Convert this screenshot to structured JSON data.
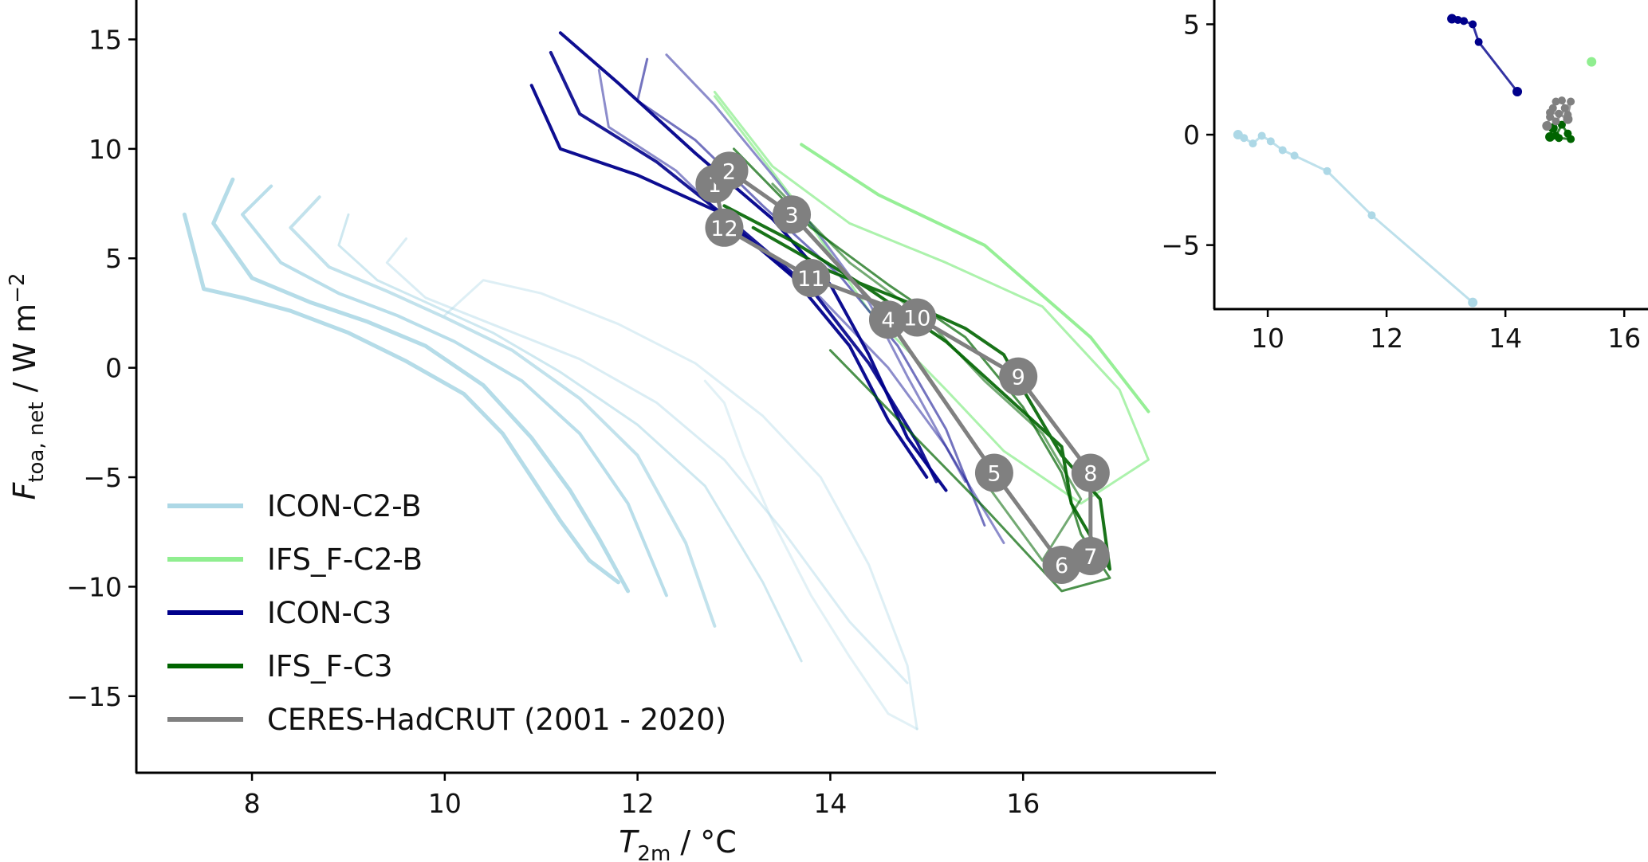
{
  "chart_data": [
    {
      "type": "line",
      "panel": "main",
      "xlabel": "T_2m / °C",
      "xlabel_parts": {
        "symbol": "T",
        "subscript": "2m",
        "unit": " / °C"
      },
      "ylabel": "F_toa,net / W m^-2",
      "ylabel_parts": {
        "symbol": "F",
        "subscript": "toa, net",
        "unit": " / W m",
        "superscript": "−2"
      },
      "xlim": [
        6.8,
        18.0
      ],
      "ylim": [
        -18.5,
        16.8
      ],
      "xticks": [
        8,
        10,
        12,
        14,
        16
      ],
      "yticks": [
        15,
        10,
        5,
        0,
        -5,
        -10,
        -15
      ],
      "xtick_labels": [
        "8",
        "10",
        "12",
        "14",
        "16"
      ],
      "ytick_labels": [
        "15",
        "10",
        "5",
        "0",
        "−5",
        "−10",
        "−15"
      ],
      "grid": false,
      "legend_position": "lower-left",
      "legend": [
        {
          "name": "ICON-C2-B",
          "color": "#add8e6"
        },
        {
          "name": "IFS_F-C2-B",
          "color": "#90ee90"
        },
        {
          "name": "ICON-C3",
          "color": "#00008b"
        },
        {
          "name": "IFS_F-C3",
          "color": "#006400"
        },
        {
          "name": "CERES-HadCRUT (2001 - 2020)",
          "color": "#808080"
        }
      ],
      "series": [
        {
          "name": "ICON-C2-B",
          "color": "#add8e6",
          "opacity": 0.9,
          "width": 5,
          "x": [
            7.3,
            7.5,
            7.9,
            8.4,
            9.0,
            9.6,
            10.2,
            10.6,
            10.9,
            11.2,
            11.5,
            11.8
          ],
          "y": [
            7.0,
            3.6,
            3.2,
            2.6,
            1.6,
            0.3,
            -1.2,
            -3.0,
            -5.0,
            -7.0,
            -8.8,
            -9.8
          ]
        },
        {
          "name": "ICON-C2-B",
          "color": "#add8e6",
          "opacity": 0.9,
          "width": 5,
          "x": [
            7.8,
            7.6,
            8.0,
            8.6,
            9.2,
            9.8,
            10.4,
            10.9,
            11.3,
            11.6,
            11.9
          ],
          "y": [
            8.6,
            6.6,
            4.1,
            3.0,
            2.1,
            1.0,
            -0.8,
            -3.2,
            -5.6,
            -7.8,
            -10.2
          ]
        },
        {
          "name": "ICON-C2-B",
          "color": "#add8e6",
          "opacity": 0.85,
          "width": 4,
          "x": [
            8.2,
            7.9,
            8.3,
            8.9,
            9.5,
            10.1,
            10.8,
            11.4,
            11.9,
            12.3
          ],
          "y": [
            8.3,
            7.0,
            4.8,
            3.4,
            2.4,
            1.2,
            -0.6,
            -3.0,
            -6.2,
            -10.4
          ]
        },
        {
          "name": "ICON-C2-B",
          "color": "#add8e6",
          "opacity": 0.75,
          "width": 4,
          "x": [
            8.7,
            8.4,
            8.8,
            9.4,
            10.0,
            10.7,
            11.4,
            12.0,
            12.5,
            12.8
          ],
          "y": [
            7.8,
            6.4,
            4.6,
            3.5,
            2.3,
            0.8,
            -1.4,
            -4.0,
            -8.0,
            -11.8
          ]
        },
        {
          "name": "ICON-C2-B",
          "color": "#add8e6",
          "opacity": 0.6,
          "width": 3,
          "x": [
            9.0,
            8.9,
            9.3,
            9.9,
            10.5,
            11.2,
            12.0,
            12.7,
            13.3,
            13.7
          ],
          "y": [
            7.0,
            5.6,
            4.0,
            2.8,
            1.6,
            -0.2,
            -2.6,
            -5.4,
            -9.8,
            -13.4
          ]
        },
        {
          "name": "ICON-C2-B",
          "color": "#add8e6",
          "opacity": 0.45,
          "width": 3,
          "x": [
            9.6,
            9.4,
            9.8,
            10.6,
            11.4,
            12.2,
            12.9,
            13.5,
            14.2,
            14.8
          ],
          "y": [
            5.9,
            4.8,
            3.2,
            1.8,
            0.4,
            -1.6,
            -4.2,
            -7.4,
            -11.6,
            -14.4
          ]
        },
        {
          "name": "ICON-C2-B",
          "color": "#add8e6",
          "opacity": 0.4,
          "width": 3,
          "x": [
            10.0,
            10.4,
            11.0,
            11.8,
            12.6,
            13.3,
            13.9,
            14.4,
            14.8,
            14.9
          ],
          "y": [
            2.4,
            4.0,
            3.4,
            2.0,
            0.2,
            -2.2,
            -5.0,
            -9.0,
            -13.6,
            -16.5
          ]
        },
        {
          "name": "ICON-C2-B",
          "color": "#add8e6",
          "opacity": 0.35,
          "width": 3,
          "x": [
            12.7,
            12.9,
            13.1,
            13.4,
            13.8,
            14.2,
            14.6,
            14.9
          ],
          "y": [
            -0.6,
            -1.6,
            -4.0,
            -7.0,
            -10.4,
            -13.2,
            -15.8,
            -16.5
          ]
        },
        {
          "name": "IFS_F-C2-B",
          "color": "#90ee90",
          "opacity": 0.75,
          "width": 3,
          "x": [
            12.8,
            13.4,
            14.2,
            15.2,
            16.2,
            17.0,
            17.3,
            16.6,
            15.8,
            15.2,
            14.4,
            13.6,
            12.8
          ],
          "y": [
            12.6,
            9.2,
            6.6,
            4.8,
            2.8,
            -1.0,
            -4.2,
            -6.2,
            -3.8,
            -1.0,
            2.6,
            7.8,
            12.4
          ]
        },
        {
          "name": "IFS_F-C2-B",
          "color": "#90ee90",
          "opacity": 0.95,
          "width": 4,
          "x": [
            13.7,
            14.5,
            15.6,
            16.7,
            17.3
          ],
          "y": [
            10.2,
            7.9,
            5.6,
            1.4,
            -2.0
          ]
        },
        {
          "name": "ICON-C3",
          "color": "#00008b",
          "opacity": 0.95,
          "width": 4,
          "x": [
            11.2,
            11.8,
            12.6,
            13.4,
            14.0,
            14.4,
            14.8,
            15.2
          ],
          "y": [
            15.3,
            13.0,
            9.8,
            6.8,
            3.8,
            0.6,
            -3.2,
            -5.6
          ]
        },
        {
          "name": "ICON-C3",
          "color": "#00008b",
          "opacity": 0.95,
          "width": 4,
          "x": [
            10.9,
            11.2,
            12.0,
            12.8,
            13.6,
            14.2,
            14.6,
            15.0
          ],
          "y": [
            12.9,
            10.0,
            8.8,
            7.2,
            4.2,
            1.0,
            -2.4,
            -5.0
          ]
        },
        {
          "name": "ICON-C3",
          "color": "#00008b",
          "opacity": 0.9,
          "width": 4,
          "x": [
            11.1,
            11.4,
            12.2,
            13.0,
            13.8,
            14.4,
            14.9,
            15.1
          ],
          "y": [
            14.4,
            11.6,
            9.4,
            6.6,
            3.6,
            0.2,
            -3.4,
            -5.2
          ]
        },
        {
          "name": "ICON-C3",
          "color": "#00008b",
          "opacity": 0.55,
          "width": 3,
          "x": [
            12.1,
            12.0,
            12.6,
            13.3,
            14.1,
            14.7,
            15.2,
            15.6
          ],
          "y": [
            14.1,
            12.2,
            10.4,
            7.4,
            4.2,
            1.0,
            -2.8,
            -7.2
          ]
        },
        {
          "name": "ICON-C3",
          "color": "#00008b",
          "opacity": 0.45,
          "width": 3,
          "x": [
            11.6,
            11.7,
            12.4,
            13.1,
            13.9,
            14.6,
            15.2,
            15.8
          ],
          "y": [
            13.6,
            11.0,
            9.0,
            6.0,
            3.2,
            0.0,
            -3.6,
            -8.0
          ]
        },
        {
          "name": "ICON-C3",
          "color": "#00008b",
          "opacity": 0.45,
          "width": 3,
          "x": [
            12.3,
            12.8,
            13.4,
            13.9,
            14.4,
            14.8,
            15.4
          ],
          "y": [
            14.3,
            12.0,
            8.8,
            6.0,
            3.0,
            -0.4,
            -5.2
          ]
        },
        {
          "name": "IFS_F-C3",
          "color": "#006400",
          "opacity": 0.9,
          "width": 4,
          "x": [
            12.9,
            13.6,
            14.4,
            15.2,
            15.8,
            16.4,
            16.5,
            16.9,
            16.8,
            16.4,
            16.0,
            15.8,
            15.4,
            14.8,
            14.0,
            13.2
          ],
          "y": [
            7.4,
            5.8,
            3.6,
            1.2,
            -1.2,
            -3.6,
            -6.2,
            -9.2,
            -6.0,
            -4.0,
            -1.0,
            0.6,
            1.8,
            3.0,
            4.4,
            6.4
          ]
        },
        {
          "name": "IFS_F-C3",
          "color": "#006400",
          "opacity": 0.7,
          "width": 3,
          "x": [
            13.0,
            13.8,
            14.6,
            15.4,
            16.0,
            16.4,
            16.6,
            16.9,
            16.4,
            15.6,
            14.8,
            14.0
          ],
          "y": [
            10.0,
            6.4,
            3.8,
            1.4,
            -1.8,
            -4.8,
            -7.6,
            -9.6,
            -10.2,
            -6.4,
            -2.8,
            0.8
          ]
        },
        {
          "name": "IFS_F-C3",
          "color": "#006400",
          "opacity": 0.55,
          "width": 3,
          "x": [
            13.4,
            14.2,
            15.0,
            15.6,
            16.2,
            16.6,
            16.2,
            15.6
          ],
          "y": [
            8.4,
            4.8,
            2.2,
            -0.6,
            -3.0,
            -6.0,
            -8.8,
            -5.2
          ]
        },
        {
          "name": "CERES-HadCRUT (2001 - 2020)",
          "color": "#808080",
          "opacity": 1.0,
          "width": 5,
          "months": [
            "1",
            "2",
            "3",
            "4",
            "5",
            "6",
            "7",
            "8",
            "9",
            "10",
            "11",
            "12",
            "1"
          ],
          "x": [
            12.8,
            12.95,
            13.6,
            14.6,
            15.7,
            16.4,
            16.7,
            16.7,
            15.95,
            14.9,
            13.8,
            12.9,
            12.8
          ],
          "y": [
            8.4,
            9.0,
            7.0,
            2.2,
            -4.8,
            -9.0,
            -8.6,
            -4.8,
            -0.4,
            2.3,
            4.1,
            6.4,
            8.4
          ]
        }
      ],
      "month_labels": [
        {
          "label": "1",
          "x": 12.8,
          "y": 8.4
        },
        {
          "label": "2",
          "x": 12.95,
          "y": 9.0
        },
        {
          "label": "3",
          "x": 13.6,
          "y": 7.0
        },
        {
          "label": "4",
          "x": 14.6,
          "y": 2.2
        },
        {
          "label": "5",
          "x": 15.7,
          "y": -4.8
        },
        {
          "label": "6",
          "x": 16.4,
          "y": -9.0
        },
        {
          "label": "7",
          "x": 16.7,
          "y": -8.6
        },
        {
          "label": "8",
          "x": 16.7,
          "y": -4.8
        },
        {
          "label": "9",
          "x": 15.95,
          "y": -0.4
        },
        {
          "label": "10",
          "x": 14.9,
          "y": 2.3
        },
        {
          "label": "11",
          "x": 13.8,
          "y": 4.1
        },
        {
          "label": "12",
          "x": 12.9,
          "y": 6.4
        }
      ]
    },
    {
      "type": "scatter",
      "panel": "inset",
      "xlim": [
        9.1,
        16.4
      ],
      "ylim": [
        -7.9,
        6.1
      ],
      "xticks": [
        10,
        12,
        14,
        16
      ],
      "yticks": [
        5,
        0,
        -5
      ],
      "xtick_labels": [
        "10",
        "12",
        "14",
        "16"
      ],
      "ytick_labels": [
        "5",
        "0",
        "−5"
      ],
      "grid": false,
      "series": [
        {
          "name": "ICON-C2-B",
          "color": "#add8e6",
          "x": [
            9.5,
            9.6,
            9.75,
            9.9,
            10.05,
            10.25,
            10.45,
            11.0,
            11.75,
            13.45
          ],
          "y": [
            0.0,
            -0.15,
            -0.4,
            -0.05,
            -0.3,
            -0.7,
            -0.95,
            -1.65,
            -3.65,
            -7.6
          ]
        },
        {
          "name": "IFS_F-C2-B",
          "color": "#90ee90",
          "x": [
            15.45
          ],
          "y": [
            3.3
          ]
        },
        {
          "name": "ICON-C3",
          "color": "#00008b",
          "x": [
            13.1,
            13.2,
            13.3,
            13.45,
            13.55,
            14.2
          ],
          "y": [
            5.25,
            5.2,
            5.15,
            5.0,
            4.2,
            1.95
          ]
        },
        {
          "name": "IFS_F-C3",
          "color": "#006400",
          "x": [
            14.75,
            14.85,
            14.95,
            15.05,
            15.1,
            14.9,
            14.8
          ],
          "y": [
            -0.1,
            -0.05,
            0.45,
            0.05,
            -0.2,
            -0.15,
            0.3
          ]
        },
        {
          "name": "CERES-HadCRUT (2001 - 2020)",
          "color": "#808080",
          "x": [
            14.7,
            14.75,
            14.8,
            14.85,
            14.95,
            15.0,
            15.05,
            15.1,
            14.85,
            14.75,
            14.9,
            15.05
          ],
          "y": [
            0.4,
            0.8,
            1.2,
            1.5,
            1.55,
            1.2,
            0.9,
            1.5,
            0.6,
            1.0,
            0.95,
            0.7
          ]
        }
      ]
    }
  ]
}
